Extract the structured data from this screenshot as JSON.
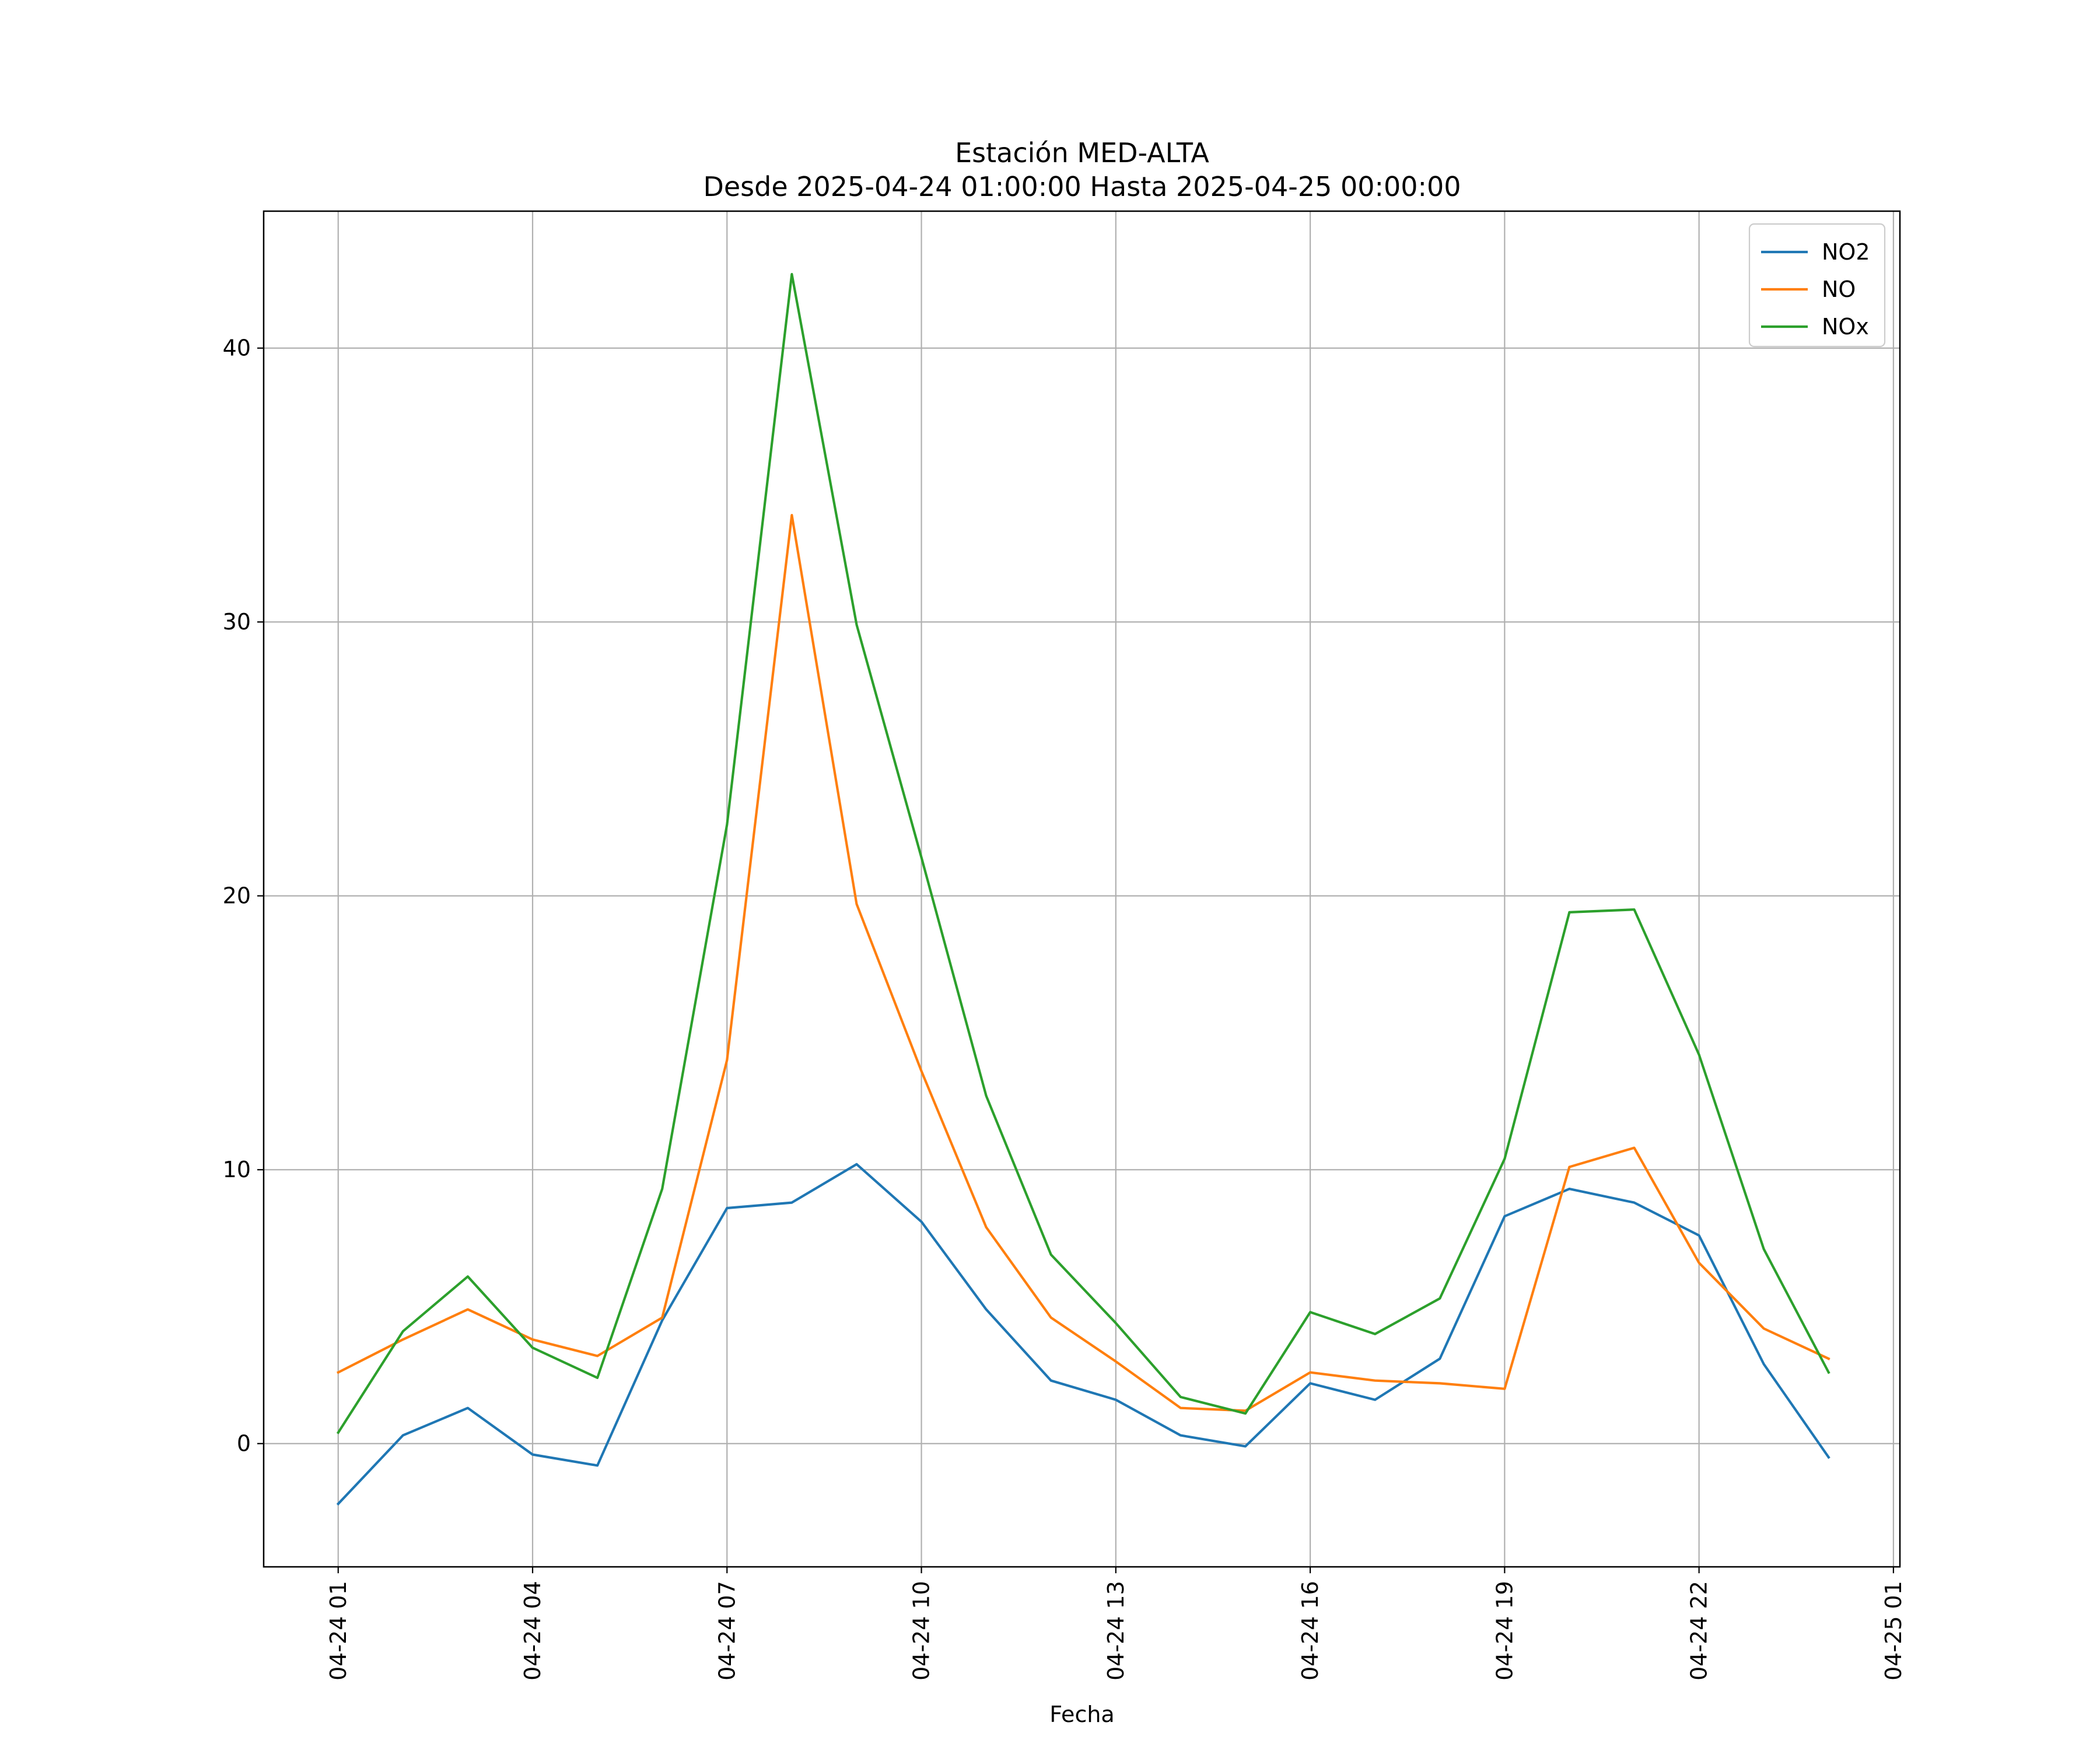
{
  "chart_data": {
    "type": "line",
    "title": "Estación MED-ALTA",
    "subtitle": "Desde 2025-04-24 01:00:00 Hasta 2025-04-25 00:00:00",
    "xlabel": "Fecha",
    "ylabel": "",
    "x": [
      "2025-04-24 01:00",
      "2025-04-24 02:00",
      "2025-04-24 03:00",
      "2025-04-24 04:00",
      "2025-04-24 05:00",
      "2025-04-24 06:00",
      "2025-04-24 07:00",
      "2025-04-24 08:00",
      "2025-04-24 09:00",
      "2025-04-24 10:00",
      "2025-04-24 11:00",
      "2025-04-24 12:00",
      "2025-04-24 13:00",
      "2025-04-24 14:00",
      "2025-04-24 15:00",
      "2025-04-24 16:00",
      "2025-04-24 17:00",
      "2025-04-24 18:00",
      "2025-04-24 19:00",
      "2025-04-24 20:00",
      "2025-04-24 21:00",
      "2025-04-24 22:00",
      "2025-04-24 23:00",
      "2025-04-25 00:00"
    ],
    "xticks": [
      {
        "label": "04-24 01",
        "hour": 0
      },
      {
        "label": "04-24 04",
        "hour": 3
      },
      {
        "label": "04-24 07",
        "hour": 6
      },
      {
        "label": "04-24 10",
        "hour": 9
      },
      {
        "label": "04-24 13",
        "hour": 12
      },
      {
        "label": "04-24 16",
        "hour": 15
      },
      {
        "label": "04-24 19",
        "hour": 18
      },
      {
        "label": "04-24 22",
        "hour": 21
      },
      {
        "label": "04-25 01",
        "hour": 24
      }
    ],
    "yticks": [
      0,
      10,
      20,
      30,
      40
    ],
    "ylim": [
      -4.5,
      45.0
    ],
    "xlim": [
      -1.15,
      24.1
    ],
    "grid": true,
    "legend_position": "top-right",
    "series": [
      {
        "name": "NO2",
        "color": "#1f77b4",
        "values": [
          -2.2,
          0.3,
          1.3,
          -0.4,
          -0.8,
          4.5,
          8.6,
          8.8,
          10.2,
          8.1,
          4.9,
          2.3,
          1.6,
          0.3,
          -0.1,
          2.2,
          1.6,
          3.1,
          8.3,
          9.3,
          8.8,
          7.6,
          2.9,
          -0.5
        ]
      },
      {
        "name": "NO",
        "color": "#ff7f0e",
        "values": [
          2.6,
          3.8,
          4.9,
          3.8,
          3.2,
          4.6,
          14.0,
          33.9,
          19.7,
          13.6,
          7.9,
          4.6,
          3.0,
          1.3,
          1.2,
          2.6,
          2.3,
          2.2,
          2.0,
          10.1,
          10.8,
          6.6,
          4.2,
          3.1
        ]
      },
      {
        "name": "NOx",
        "color": "#2ca02c",
        "values": [
          0.4,
          4.1,
          6.1,
          3.5,
          2.4,
          9.3,
          22.6,
          42.7,
          29.9,
          21.4,
          12.7,
          6.9,
          4.4,
          1.7,
          1.1,
          4.8,
          4.0,
          5.3,
          10.4,
          19.4,
          19.5,
          14.2,
          7.1,
          2.6
        ]
      }
    ]
  }
}
